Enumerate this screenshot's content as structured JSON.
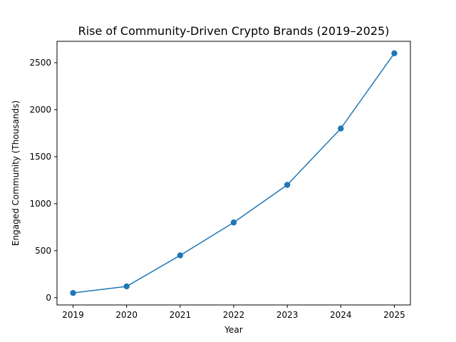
{
  "chart_data": {
    "type": "line",
    "title": "Rise of Community-Driven Crypto Brands (2019–2025)",
    "xlabel": "Year",
    "ylabel": "Engaged Community (Thousands)",
    "x": [
      2019,
      2020,
      2021,
      2022,
      2023,
      2024,
      2025
    ],
    "series": [
      {
        "values": [
          50,
          120,
          450,
          800,
          1200,
          1800,
          2600
        ],
        "color": "#1f77b4",
        "marker": "circle"
      }
    ],
    "xlim": [
      2018.7,
      2025.3
    ],
    "ylim": [
      -77.5,
      2727.5
    ],
    "x_ticks": [
      "2019",
      "2020",
      "2021",
      "2022",
      "2023",
      "2024",
      "2025"
    ],
    "y_ticks": [
      "0",
      "500",
      "1000",
      "1500",
      "2000",
      "2500"
    ],
    "grid": false,
    "legend": "none"
  }
}
